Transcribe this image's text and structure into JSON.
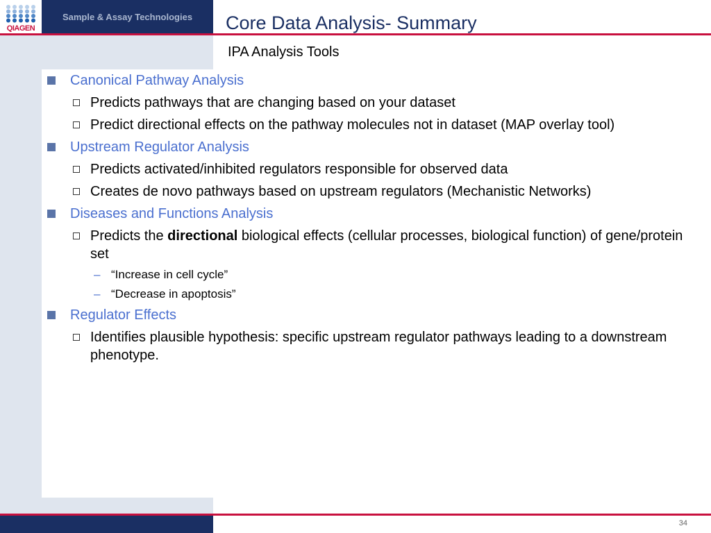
{
  "header": {
    "brand": "QIAGEN",
    "tagline": "Sample & Assay Technologies",
    "title": "Core Data Analysis- Summary",
    "subtitle": "IPA Analysis Tools"
  },
  "colors": {
    "navy": "#1a2f63",
    "red": "#c8103e",
    "panel": "#dfe5ee",
    "heading": "#4a6fcf"
  },
  "sections": [
    {
      "heading": "Canonical Pathway Analysis",
      "items": [
        {
          "text": "Predicts pathways that are changing based on your dataset"
        },
        {
          "text": "Predict directional effects on the pathway molecules not in dataset (MAP overlay tool)"
        }
      ]
    },
    {
      "heading": "Upstream Regulator Analysis",
      "items": [
        {
          "text": "Predicts activated/inhibited regulators responsible for observed data"
        },
        {
          "text": "Creates de novo pathways based on upstream regulators (Mechanistic Networks)"
        }
      ]
    },
    {
      "heading": "Diseases and Functions Analysis",
      "items": [
        {
          "pre": "Predicts the ",
          "bold": "directional",
          "post": " biological effects (cellular processes, biological function) of gene/protein set",
          "sub": [
            "“Increase in cell cycle”",
            "“Decrease in apoptosis”"
          ]
        }
      ]
    },
    {
      "heading": "Regulator Effects",
      "items": [
        {
          "text": "Identifies plausible hypothesis: specific upstream regulator pathways leading to a downstream phenotype."
        }
      ]
    }
  ],
  "footer": {
    "page_number": "34"
  }
}
